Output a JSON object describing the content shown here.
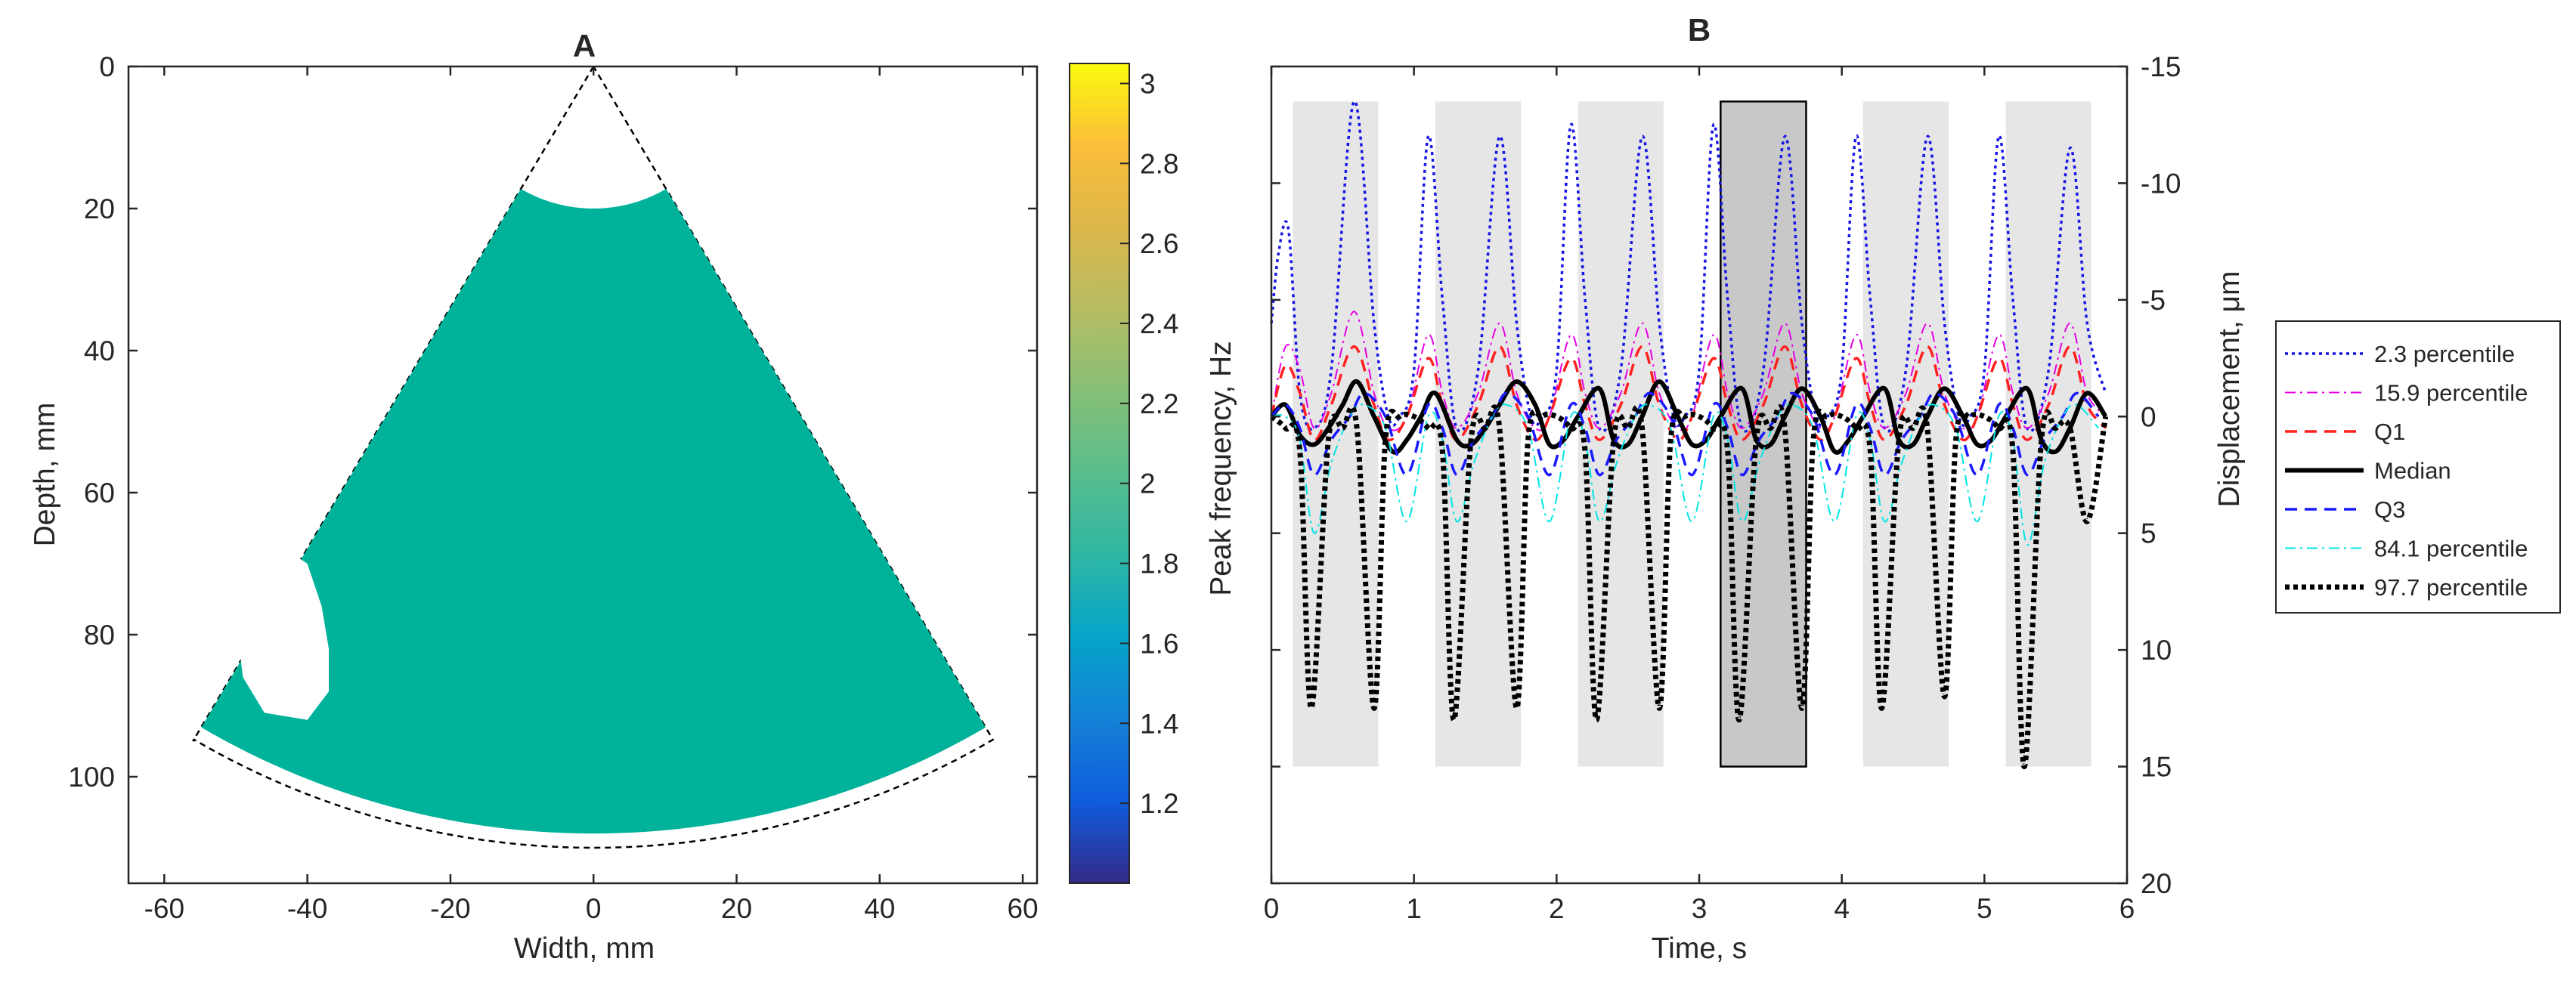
{
  "chart_data": [
    {
      "panel": "A",
      "type": "heatmap",
      "title": "A",
      "xlabel": "Width, mm",
      "ylabel": "Depth, mm",
      "xlim": [
        -65,
        62
      ],
      "ylim": [
        0,
        115
      ],
      "y_reversed": true,
      "xticks": [
        "-60",
        "-40",
        "-20",
        "0",
        "20",
        "40",
        "60"
      ],
      "yticks": [
        "0",
        "20",
        "40",
        "60",
        "80",
        "100"
      ],
      "field_of_view": {
        "apex": [
          0,
          0
        ],
        "left_edge_end": [
          -56,
          95
        ],
        "right_edge_end": [
          56,
          95
        ],
        "inner_radius_mm": 20,
        "outer_radius_mm": 110,
        "half_angle_deg": 30.5
      },
      "fill_value": 2.1,
      "fill_color": "#00b29a",
      "colorbar": {
        "label": "Peak frequency, Hz",
        "range": [
          1.0,
          3.05
        ],
        "ticks": [
          "1.2",
          "1.4",
          "1.6",
          "1.8",
          "2",
          "2.2",
          "2.4",
          "2.6",
          "2.8",
          "3"
        ]
      }
    },
    {
      "panel": "B",
      "type": "line",
      "title": "B",
      "xlabel": "Time, s",
      "ylabel": "Displacement, μm",
      "xlim": [
        0,
        6
      ],
      "ylim": [
        -15,
        20
      ],
      "y_reversed": true,
      "y_axis_location": "right",
      "xticks": [
        "0",
        "1",
        "2",
        "3",
        "4",
        "5",
        "6"
      ],
      "yticks": [
        "-15",
        "-10",
        "-5",
        "0",
        "5",
        "10",
        "15",
        "20"
      ],
      "legend_position": "outside-right",
      "shaded_intervals": [
        {
          "start": 0.15,
          "end": 0.75,
          "top": -13.5,
          "bottom": 15,
          "highlight": false
        },
        {
          "start": 1.15,
          "end": 1.75,
          "top": -13.5,
          "bottom": 15,
          "highlight": false
        },
        {
          "start": 2.15,
          "end": 2.75,
          "top": -13.5,
          "bottom": 15,
          "highlight": false
        },
        {
          "start": 3.15,
          "end": 3.75,
          "top": -13.5,
          "bottom": 15,
          "highlight": true
        },
        {
          "start": 4.15,
          "end": 4.75,
          "top": -13.5,
          "bottom": 15,
          "highlight": false
        },
        {
          "start": 5.15,
          "end": 5.75,
          "top": -13.5,
          "bottom": 15,
          "highlight": false
        }
      ],
      "series": [
        {
          "name": "2.3  percentile",
          "color": "#1515e6",
          "style": "dotted",
          "width": 3.5,
          "x": [
            0.0,
            0.05,
            0.12,
            0.2,
            0.3,
            0.42,
            0.58,
            0.72,
            0.82,
            0.9,
            1.0,
            1.1,
            1.2,
            1.3,
            1.45,
            1.6,
            1.72,
            1.82,
            1.9,
            2.0,
            2.1,
            2.2,
            2.3,
            2.45,
            2.6,
            2.72,
            2.82,
            2.9,
            3.0,
            3.1,
            3.2,
            3.3,
            3.45,
            3.6,
            3.72,
            3.82,
            3.9,
            4.0,
            4.1,
            4.2,
            4.3,
            4.45,
            4.6,
            4.72,
            4.82,
            4.9,
            5.0,
            5.1,
            5.2,
            5.3,
            5.45,
            5.6,
            5.72,
            5.85
          ],
          "y": [
            -4,
            -7,
            -8,
            -1,
            0.5,
            -2,
            -13.5,
            -4,
            0,
            0,
            -2,
            -12,
            -5,
            0.5,
            -2,
            -12,
            -4,
            0,
            0,
            -2,
            -12.5,
            -5,
            0.5,
            -2,
            -12,
            -4,
            0,
            0,
            -2,
            -12.5,
            -5,
            0.5,
            -2,
            -12,
            -4,
            0,
            0,
            -2,
            -12,
            -5,
            0.5,
            -2,
            -12,
            -4,
            0,
            0,
            -2,
            -12,
            -5,
            0.5,
            -2,
            -11.5,
            -4,
            -1
          ]
        },
        {
          "name": "15.9  percentile",
          "color": "#e600e6",
          "style": "dashdot",
          "width": 2,
          "x": [
            0.0,
            0.1,
            0.2,
            0.3,
            0.42,
            0.58,
            0.72,
            0.82,
            0.95,
            1.1,
            1.2,
            1.3,
            1.45,
            1.6,
            1.72,
            1.85,
            1.95,
            2.1,
            2.2,
            2.3,
            2.45,
            2.6,
            2.72,
            2.85,
            2.95,
            3.1,
            3.2,
            3.3,
            3.45,
            3.6,
            3.72,
            3.85,
            3.95,
            4.1,
            4.2,
            4.3,
            4.45,
            4.6,
            4.72,
            4.85,
            4.95,
            5.1,
            5.2,
            5.3,
            5.45,
            5.6,
            5.72,
            5.85
          ],
          "y": [
            0,
            -3,
            -2,
            0.5,
            -1,
            -4.5,
            -1,
            0.5,
            0,
            -3.5,
            -1,
            0.5,
            -1,
            -4,
            -1,
            0.5,
            0,
            -3.5,
            -1,
            0.5,
            -1,
            -4,
            -1,
            0.5,
            0,
            -3.5,
            -1,
            0.5,
            -1,
            -4,
            -1,
            0.5,
            0,
            -3.5,
            -1,
            0.5,
            -1,
            -4,
            -1,
            0.5,
            0,
            -3.5,
            -1,
            0.5,
            -1,
            -4,
            -1,
            0
          ]
        },
        {
          "name": "Q1",
          "color": "#ff2020",
          "style": "dashed",
          "width": 3.5,
          "x": [
            0.0,
            0.1,
            0.2,
            0.3,
            0.42,
            0.58,
            0.72,
            0.82,
            0.95,
            1.1,
            1.2,
            1.3,
            1.45,
            1.6,
            1.72,
            1.85,
            1.95,
            2.1,
            2.2,
            2.3,
            2.45,
            2.6,
            2.72,
            2.85,
            2.95,
            3.1,
            3.2,
            3.3,
            3.45,
            3.6,
            3.72,
            3.85,
            3.95,
            4.1,
            4.2,
            4.3,
            4.45,
            4.6,
            4.72,
            4.85,
            4.95,
            5.1,
            5.2,
            5.3,
            5.45,
            5.6,
            5.72,
            5.85
          ],
          "y": [
            0,
            -2.2,
            -1,
            1,
            -0.5,
            -3,
            -0.5,
            1,
            0,
            -2.5,
            -0.5,
            1,
            -0.5,
            -3,
            -0.5,
            1,
            0,
            -2.5,
            -0.5,
            1,
            -0.5,
            -3,
            -0.5,
            1,
            0,
            -2.5,
            -0.5,
            1,
            -0.5,
            -3,
            -0.5,
            1,
            0,
            -2.5,
            -0.5,
            1,
            -0.5,
            -3,
            -0.5,
            1,
            0,
            -2.5,
            -0.5,
            1,
            -0.5,
            -3,
            -0.5,
            0.5
          ]
        },
        {
          "name": "Median",
          "color": "#000000",
          "style": "solid",
          "width": 6,
          "x": [
            0.0,
            0.1,
            0.2,
            0.3,
            0.4,
            0.5,
            0.6,
            0.72,
            0.85,
            0.95,
            1.05,
            1.15,
            1.3,
            1.4,
            1.5,
            1.6,
            1.72,
            1.85,
            1.95,
            2.05,
            2.15,
            2.3,
            2.4,
            2.5,
            2.6,
            2.72,
            2.85,
            2.95,
            3.05,
            3.15,
            3.3,
            3.4,
            3.5,
            3.6,
            3.72,
            3.85,
            3.95,
            4.05,
            4.15,
            4.3,
            4.4,
            4.5,
            4.6,
            4.72,
            4.85,
            4.95,
            5.05,
            5.15,
            5.3,
            5.4,
            5.5,
            5.6,
            5.72,
            5.85
          ],
          "y": [
            0,
            -0.5,
            0.8,
            1.2,
            0.5,
            -0.5,
            -1.5,
            0,
            1.5,
            1,
            0,
            -1,
            1,
            1.2,
            0.5,
            -0.5,
            -1.5,
            -0.5,
            1.2,
            1,
            0,
            -1.2,
            1,
            1.2,
            0,
            -1.5,
            0,
            1.2,
            1,
            0,
            -1.2,
            1,
            1.2,
            0,
            -1.2,
            0,
            1.5,
            1,
            0,
            -1.2,
            1,
            1.2,
            0,
            -1.2,
            0,
            1.2,
            1,
            0,
            -1.2,
            1,
            1.5,
            0.5,
            -1,
            0
          ]
        },
        {
          "name": "Q3",
          "color": "#1a1aff",
          "style": "dashed",
          "width": 3.5,
          "x": [
            0.0,
            0.1,
            0.2,
            0.3,
            0.42,
            0.55,
            0.65,
            0.8,
            0.95,
            1.1,
            1.2,
            1.3,
            1.42,
            1.55,
            1.65,
            1.8,
            1.95,
            2.1,
            2.2,
            2.3,
            2.42,
            2.55,
            2.65,
            2.8,
            2.95,
            3.1,
            3.2,
            3.3,
            3.42,
            3.55,
            3.65,
            3.8,
            3.95,
            4.1,
            4.2,
            4.3,
            4.42,
            4.55,
            4.65,
            4.8,
            4.95,
            5.1,
            5.2,
            5.3,
            5.42,
            5.55,
            5.65,
            5.8
          ],
          "y": [
            0,
            -0.5,
            0.5,
            2.5,
            1,
            0,
            -1,
            0,
            2.5,
            -0.5,
            0.5,
            2.5,
            1,
            0,
            -1,
            0,
            2.5,
            -0.5,
            0.5,
            2.5,
            1,
            0,
            -1,
            0,
            2.5,
            -0.5,
            0.5,
            2.5,
            1,
            0,
            -1,
            0,
            2.5,
            -0.5,
            0.5,
            2.5,
            1,
            0,
            -1,
            0,
            2.5,
            -0.5,
            0.5,
            2.5,
            1,
            0,
            -1,
            0
          ]
        },
        {
          "name": "84.1  percentile",
          "color": "#00e5e5",
          "style": "dashdot",
          "width": 2,
          "x": [
            0.0,
            0.1,
            0.2,
            0.3,
            0.42,
            0.55,
            0.65,
            0.8,
            0.95,
            1.1,
            1.2,
            1.3,
            1.42,
            1.55,
            1.65,
            1.8,
            1.95,
            2.1,
            2.2,
            2.3,
            2.42,
            2.55,
            2.65,
            2.8,
            2.95,
            3.1,
            3.2,
            3.3,
            3.42,
            3.55,
            3.65,
            3.8,
            3.95,
            4.1,
            4.2,
            4.3,
            4.42,
            4.55,
            4.65,
            4.8,
            4.95,
            5.1,
            5.2,
            5.3,
            5.42,
            5.55,
            5.65,
            5.8
          ],
          "y": [
            0,
            0,
            1,
            5,
            2,
            0,
            -0.5,
            0.5,
            4.5,
            0,
            1,
            4.5,
            2,
            0,
            -0.5,
            0.5,
            4.5,
            0,
            1,
            4.5,
            2,
            0,
            -0.5,
            0.5,
            4.5,
            0,
            1,
            4.5,
            2,
            0,
            -0.5,
            0.5,
            4.5,
            0,
            1,
            4.5,
            2,
            0,
            -0.5,
            0.5,
            4.5,
            0,
            1,
            5.5,
            2,
            0,
            -0.5,
            0.5
          ]
        },
        {
          "name": "97.7  percentile",
          "color": "#000000",
          "style": "dotted",
          "width": 7,
          "x": [
            0.0,
            0.1,
            0.2,
            0.28,
            0.4,
            0.5,
            0.6,
            0.72,
            0.8,
            0.9,
            1.0,
            1.1,
            1.2,
            1.28,
            1.4,
            1.5,
            1.6,
            1.72,
            1.8,
            1.9,
            2.0,
            2.1,
            2.2,
            2.28,
            2.4,
            2.5,
            2.6,
            2.72,
            2.8,
            2.9,
            3.0,
            3.1,
            3.2,
            3.28,
            3.4,
            3.5,
            3.6,
            3.72,
            3.8,
            3.9,
            4.0,
            4.1,
            4.2,
            4.28,
            4.4,
            4.5,
            4.6,
            4.72,
            4.8,
            4.9,
            5.0,
            5.1,
            5.2,
            5.28,
            5.4,
            5.5,
            5.6,
            5.72,
            5.85
          ],
          "y": [
            0,
            0.5,
            1.5,
            12.5,
            1,
            0.5,
            0.5,
            12.5,
            1,
            0,
            0,
            0.5,
            1.5,
            13,
            1,
            0.5,
            0.5,
            12.5,
            1,
            0,
            0,
            0.5,
            1.5,
            13,
            1,
            0.5,
            0.5,
            12.5,
            1,
            0,
            0,
            0.5,
            1.5,
            13,
            1,
            0.5,
            0.5,
            12.5,
            1,
            0,
            0,
            0.5,
            1.5,
            12.5,
            1,
            0.5,
            0.5,
            12,
            1,
            0,
            0,
            0.5,
            1.5,
            15,
            1,
            0.5,
            0.5,
            4.5,
            0
          ]
        }
      ]
    }
  ]
}
